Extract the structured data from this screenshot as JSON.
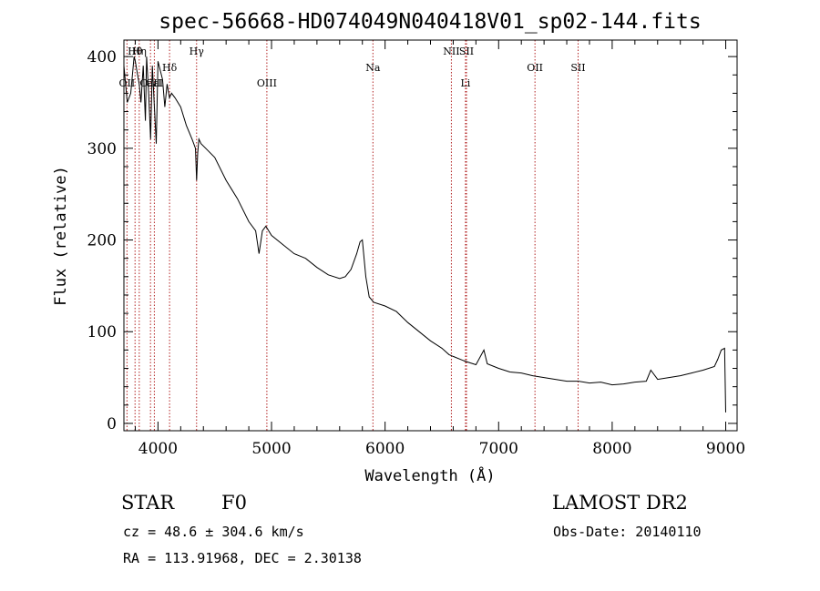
{
  "chart_data": {
    "type": "line",
    "title": "spec-56668-HD074049N040418V01_sp02-144.fits",
    "xlabel": "Wavelength (Å)",
    "ylabel": "Flux (relative)",
    "xlim": [
      3700,
      9100
    ],
    "ylim": [
      -8,
      418
    ],
    "x_ticks": [
      4000,
      5000,
      6000,
      7000,
      8000,
      9000
    ],
    "y_ticks": [
      0,
      100,
      200,
      300,
      400
    ],
    "grid": false,
    "series": [
      {
        "color": "#000000",
        "x": [
          3700,
          3730,
          3760,
          3790,
          3800,
          3820,
          3835,
          3850,
          3870,
          3889,
          3900,
          3920,
          3935,
          3950,
          3970,
          3985,
          4000,
          4020,
          4040,
          4060,
          4080,
          4101,
          4120,
          4150,
          4200,
          4250,
          4300,
          4330,
          4340,
          4350,
          4360,
          4380,
          4420,
          4500,
          4600,
          4700,
          4800,
          4860,
          4890,
          4920,
          4950,
          5000,
          5100,
          5200,
          5300,
          5400,
          5500,
          5600,
          5650,
          5700,
          5750,
          5780,
          5800,
          5830,
          5860,
          5900,
          6000,
          6100,
          6200,
          6300,
          6400,
          6500,
          6563,
          6600,
          6700,
          6800,
          6870,
          6900,
          7000,
          7100,
          7200,
          7300,
          7400,
          7500,
          7600,
          7700,
          7800,
          7900,
          8000,
          8100,
          8200,
          8300,
          8340,
          8400,
          8500,
          8600,
          8700,
          8800,
          8900,
          8930,
          8960,
          8990,
          9000
        ],
        "y": [
          390,
          350,
          360,
          400,
          395,
          380,
          370,
          350,
          390,
          330,
          400,
          355,
          310,
          390,
          340,
          305,
          395,
          385,
          375,
          345,
          370,
          355,
          360,
          355,
          345,
          325,
          310,
          300,
          265,
          295,
          310,
          305,
          300,
          290,
          265,
          245,
          220,
          210,
          185,
          210,
          215,
          205,
          195,
          185,
          180,
          170,
          162,
          158,
          160,
          168,
          185,
          198,
          200,
          160,
          138,
          132,
          128,
          122,
          110,
          100,
          90,
          82,
          75,
          73,
          68,
          64,
          80,
          65,
          60,
          56,
          55,
          52,
          50,
          48,
          46,
          46,
          44,
          45,
          42,
          43,
          45,
          46,
          58,
          48,
          50,
          52,
          55,
          58,
          62,
          70,
          80,
          82,
          12
        ]
      }
    ],
    "line_markers": [
      {
        "label": "OII",
        "x": 3727,
        "row": "low"
      },
      {
        "label": "Hθ",
        "x": 3798,
        "row": "high"
      },
      {
        "label": "Hη",
        "x": 3835,
        "row": "high"
      },
      {
        "label": "CaII",
        "x": 3934,
        "row": "low"
      },
      {
        "label": "CaI",
        "x": 3968,
        "row": "low"
      },
      {
        "label": "Hδ",
        "x": 4102,
        "row": "mid"
      },
      {
        "label": "Hγ",
        "x": 4340,
        "row": "high"
      },
      {
        "label": "OIII",
        "x": 4959,
        "row": "low"
      },
      {
        "label": "Na",
        "x": 5893,
        "row": "mid"
      },
      {
        "label": "NII",
        "x": 6584,
        "row": "high"
      },
      {
        "label": "Li",
        "x": 6708,
        "row": "low"
      },
      {
        "label": "SII",
        "x": 6717,
        "row": "high"
      },
      {
        "label": "OII",
        "x": 7320,
        "row": "mid"
      },
      {
        "label": "SII",
        "x": 7700,
        "row": "mid"
      }
    ],
    "marker_color": "#b22222"
  },
  "info": {
    "class": "STAR",
    "subclass": "F0",
    "survey": "LAMOST DR2",
    "cz": "cz = 48.6 ± 304.6 km/s",
    "obs_date": "Obs-Date: 20140110",
    "coords": "RA = 113.91968, DEC =   2.30138"
  }
}
